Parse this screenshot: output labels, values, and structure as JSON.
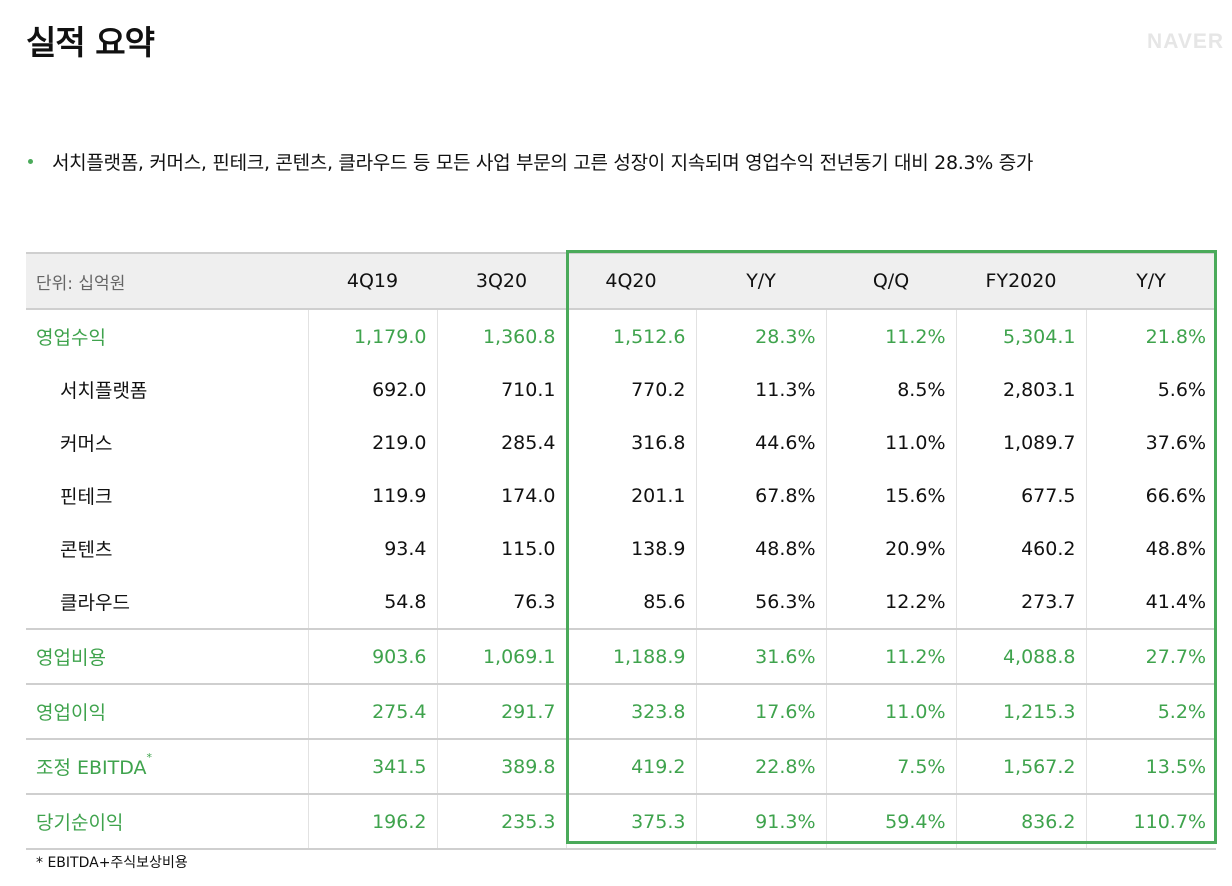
{
  "page": {
    "title": "실적 요약",
    "logo": "NAVER"
  },
  "bullet": "서치플랫폼, 커머스, 핀테크, 콘텐츠, 클라우드 등 모든 사업 부문의 고른 성장이 지속되며 영업수익 전년동기 대비 28.3% 증가",
  "table": {
    "headers": [
      "단위: 십억원",
      "4Q19",
      "3Q20",
      "4Q20",
      "Y/Y",
      "Q/Q",
      "FY2020",
      "Y/Y"
    ],
    "rows": [
      {
        "label": "영업수익",
        "values": [
          "1,179.0",
          "1,360.8",
          "1,512.6",
          "28.3%",
          "11.2%",
          "5,304.1",
          "21.8%"
        ]
      },
      {
        "label": "서치플랫폼",
        "values": [
          "692.0",
          "710.1",
          "770.2",
          "11.3%",
          "8.5%",
          "2,803.1",
          "5.6%"
        ]
      },
      {
        "label": "커머스",
        "values": [
          "219.0",
          "285.4",
          "316.8",
          "44.6%",
          "11.0%",
          "1,089.7",
          "37.6%"
        ]
      },
      {
        "label": "핀테크",
        "values": [
          "119.9",
          "174.0",
          "201.1",
          "67.8%",
          "15.6%",
          "677.5",
          "66.6%"
        ]
      },
      {
        "label": "콘텐츠",
        "values": [
          "93.4",
          "115.0",
          "138.9",
          "48.8%",
          "20.9%",
          "460.2",
          "48.8%"
        ]
      },
      {
        "label": "클라우드",
        "values": [
          "54.8",
          "76.3",
          "85.6",
          "56.3%",
          "12.2%",
          "273.7",
          "41.4%"
        ]
      },
      {
        "label": "영업비용",
        "values": [
          "903.6",
          "1,069.1",
          "1,188.9",
          "31.6%",
          "11.2%",
          "4,088.8",
          "27.7%"
        ]
      },
      {
        "label": "영업이익",
        "values": [
          "275.4",
          "291.7",
          "323.8",
          "17.6%",
          "11.0%",
          "1,215.3",
          "5.2%"
        ]
      },
      {
        "label": "조정 EBITDA",
        "note": "*",
        "values": [
          "341.5",
          "389.8",
          "419.2",
          "22.8%",
          "7.5%",
          "1,567.2",
          "13.5%"
        ]
      },
      {
        "label": "당기순이익",
        "values": [
          "196.2",
          "235.3",
          "375.3",
          "91.3%",
          "59.4%",
          "836.2",
          "110.7%"
        ]
      }
    ]
  },
  "footnote": "* EBITDA+주식보상비용",
  "colors": {
    "accent_green": "#3fa34d",
    "highlight_border": "#4aaa5a",
    "header_bg": "#efefef"
  }
}
